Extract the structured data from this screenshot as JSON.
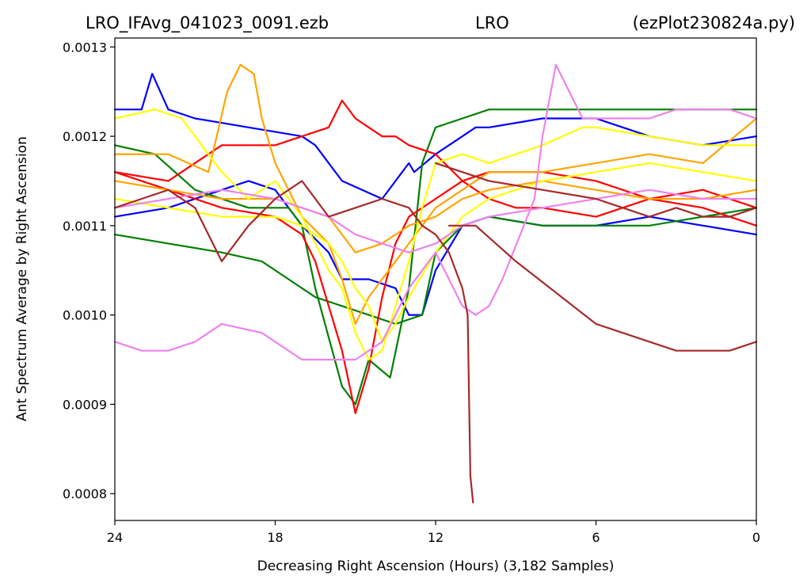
{
  "chart_data": {
    "type": "line",
    "title_left": "LRO_IFAvg_041023_0091.ezb",
    "title_center": "LRO",
    "title_right": "(ezPlot230824a.py)",
    "xlabel": "Decreasing Right Ascension (Hours) (3,182 Samples)",
    "ylabel": "Ant Spectrum Average by Right Ascension",
    "x_reversed": true,
    "xlim": [
      24,
      0
    ],
    "ylim": [
      0.00077,
      0.00131
    ],
    "x_ticks": [
      24,
      18,
      12,
      6,
      0
    ],
    "x_tick_labels": [
      "24",
      "18",
      "12",
      "6",
      "0"
    ],
    "y_ticks": [
      0.0008,
      0.0009,
      0.001,
      0.0011,
      0.0012,
      0.0013
    ],
    "y_tick_labels": [
      "0.0008",
      "0.0009",
      "0.0010",
      "0.0011",
      "0.0012",
      "0.0013"
    ],
    "grid": false,
    "series": [
      {
        "color": "#0000ff",
        "x": [
          24,
          23,
          22.6,
          22,
          21,
          19,
          17,
          16.5,
          15.5,
          14,
          13,
          12.8,
          12,
          11,
          10.5,
          10,
          8,
          6,
          4,
          2,
          0
        ],
        "y": [
          0.00123,
          0.00123,
          0.00127,
          0.00123,
          0.00122,
          0.00121,
          0.0012,
          0.00119,
          0.00115,
          0.00113,
          0.00117,
          0.00116,
          0.00118,
          0.0012,
          0.00121,
          0.00121,
          0.00122,
          0.00122,
          0.0012,
          0.00119,
          0.0012
        ]
      },
      {
        "color": "#0000ff",
        "x": [
          24,
          22,
          20,
          19,
          18,
          17,
          16,
          15.5,
          14.5,
          13.5,
          13,
          12.5,
          12,
          11,
          10,
          8,
          6,
          4,
          2,
          0
        ],
        "y": [
          0.00111,
          0.00112,
          0.00114,
          0.00115,
          0.00114,
          0.0011,
          0.00107,
          0.00104,
          0.00104,
          0.00103,
          0.001,
          0.001,
          0.00105,
          0.0011,
          0.00111,
          0.0011,
          0.0011,
          0.00111,
          0.0011,
          0.00109
        ]
      },
      {
        "color": "#008000",
        "x": [
          24,
          22.5,
          21,
          19,
          17.5,
          17,
          16.5,
          15.5,
          15,
          14.5,
          13.7,
          13,
          12.5,
          12,
          11,
          10,
          8,
          6,
          4,
          2,
          0
        ],
        "y": [
          0.00119,
          0.00118,
          0.00114,
          0.00112,
          0.00112,
          0.0011,
          0.00103,
          0.00092,
          0.0009,
          0.00095,
          0.00093,
          0.00103,
          0.00117,
          0.00121,
          0.00122,
          0.00123,
          0.00123,
          0.00123,
          0.00123,
          0.00123,
          0.00123
        ]
      },
      {
        "color": "#008000",
        "x": [
          24,
          22,
          20,
          18.5,
          17.5,
          16.5,
          15.5,
          14.5,
          13.5,
          12.5,
          12,
          11,
          10,
          8,
          6,
          4,
          2,
          0
        ],
        "y": [
          0.00109,
          0.00108,
          0.00107,
          0.00106,
          0.00104,
          0.00102,
          0.00101,
          0.001,
          0.00099,
          0.001,
          0.00107,
          0.0011,
          0.00111,
          0.0011,
          0.0011,
          0.0011,
          0.00111,
          0.00112
        ]
      },
      {
        "color": "#ff0000",
        "x": [
          24,
          22,
          20,
          18,
          17,
          16,
          15.5,
          15,
          14.5,
          14,
          13.5,
          13,
          12,
          11,
          10,
          9,
          8,
          6,
          4,
          2,
          0
        ],
        "y": [
          0.00116,
          0.00115,
          0.00119,
          0.00119,
          0.0012,
          0.00121,
          0.00124,
          0.00122,
          0.00121,
          0.0012,
          0.0012,
          0.00119,
          0.00118,
          0.00115,
          0.00113,
          0.00112,
          0.00112,
          0.00111,
          0.00113,
          0.00114,
          0.00112
        ]
      },
      {
        "color": "#ff0000",
        "x": [
          24,
          22,
          20,
          18,
          17,
          16.5,
          16,
          15.5,
          15,
          14.5,
          14,
          13.5,
          13,
          12.5,
          12,
          11,
          10,
          8,
          6,
          4,
          2,
          0
        ],
        "y": [
          0.00116,
          0.00114,
          0.00112,
          0.00111,
          0.00109,
          0.00106,
          0.00101,
          0.00096,
          0.00089,
          0.00094,
          0.00102,
          0.00108,
          0.00111,
          0.00112,
          0.00113,
          0.00115,
          0.00116,
          0.00116,
          0.00115,
          0.00113,
          0.00112,
          0.0011
        ]
      },
      {
        "color": "#ffa500",
        "x": [
          24,
          22,
          20.5,
          19.8,
          19.3,
          18.8,
          18.5,
          18,
          17,
          16,
          15.5,
          15,
          14.5,
          14,
          13,
          12,
          11,
          10,
          8,
          6,
          4,
          2,
          0
        ],
        "y": [
          0.00118,
          0.00118,
          0.00116,
          0.00125,
          0.00128,
          0.00127,
          0.00122,
          0.00117,
          0.00111,
          0.00108,
          0.00104,
          0.00099,
          0.00102,
          0.00104,
          0.00108,
          0.00112,
          0.00114,
          0.00116,
          0.00116,
          0.00117,
          0.00118,
          0.00117,
          0.00122
        ]
      },
      {
        "color": "#ffa500",
        "x": [
          24,
          22,
          20,
          18,
          17,
          16,
          15.5,
          15,
          14,
          13,
          12,
          11,
          10,
          8,
          6,
          4,
          2,
          0
        ],
        "y": [
          0.00115,
          0.00114,
          0.00113,
          0.00113,
          0.00112,
          0.00111,
          0.00109,
          0.00107,
          0.00108,
          0.0011,
          0.00111,
          0.00113,
          0.00114,
          0.00115,
          0.00114,
          0.00113,
          0.00113,
          0.00114
        ]
      },
      {
        "color": "#ffff00",
        "x": [
          24,
          22.5,
          21.5,
          21,
          20,
          19,
          18.5,
          18,
          17,
          16,
          15.5,
          15,
          14.5,
          14,
          13.5,
          13,
          12.5,
          12,
          11,
          10,
          8,
          6.5,
          6,
          4,
          2,
          0
        ],
        "y": [
          0.00122,
          0.00123,
          0.00122,
          0.0012,
          0.00116,
          0.00113,
          0.00114,
          0.00115,
          0.00111,
          0.00105,
          0.00103,
          0.00098,
          0.00095,
          0.00096,
          0.00101,
          0.00106,
          0.00112,
          0.00117,
          0.00118,
          0.00117,
          0.00119,
          0.00121,
          0.00121,
          0.0012,
          0.00119,
          0.00119
        ]
      },
      {
        "color": "#ffff00",
        "x": [
          24,
          22,
          20,
          18,
          17,
          16,
          15.5,
          15,
          14.5,
          14,
          13.5,
          13,
          12,
          11,
          10,
          8,
          6,
          4,
          2,
          0
        ],
        "y": [
          0.00113,
          0.00112,
          0.00111,
          0.00111,
          0.0011,
          0.00108,
          0.00106,
          0.00103,
          0.00101,
          0.00097,
          0.00099,
          0.00102,
          0.00107,
          0.00111,
          0.00113,
          0.00115,
          0.00116,
          0.00117,
          0.00116,
          0.00115
        ]
      },
      {
        "color": "#ee82ee",
        "x": [
          24,
          23,
          22,
          21,
          20,
          18.5,
          17,
          16,
          15,
          14,
          13,
          12,
          11,
          10.5,
          10,
          9.5,
          8.3,
          8,
          7.5,
          6.5,
          6,
          5,
          4,
          3,
          2,
          1,
          0
        ],
        "y": [
          0.00097,
          0.00096,
          0.00096,
          0.00097,
          0.00099,
          0.00098,
          0.00095,
          0.00095,
          0.00095,
          0.00097,
          0.00103,
          0.00107,
          0.00101,
          0.001,
          0.00101,
          0.00104,
          0.00113,
          0.0012,
          0.00128,
          0.00122,
          0.00122,
          0.00122,
          0.00122,
          0.00123,
          0.00123,
          0.00123,
          0.00122
        ]
      },
      {
        "color": "#ee82ee",
        "x": [
          24,
          22,
          20,
          18,
          17,
          16,
          15,
          14,
          13,
          12,
          11,
          10,
          8,
          6,
          4,
          2,
          0
        ],
        "y": [
          0.00112,
          0.00113,
          0.00114,
          0.00113,
          0.00112,
          0.00111,
          0.00109,
          0.00108,
          0.00107,
          0.00108,
          0.0011,
          0.00111,
          0.00112,
          0.00113,
          0.00114,
          0.00113,
          0.00113
        ]
      },
      {
        "color": "#a52a2a",
        "x": [
          24,
          23,
          22,
          21,
          20,
          19,
          18,
          17,
          16,
          15,
          14,
          13,
          12.5,
          12,
          11.5,
          11,
          10.8,
          10.7,
          10.6
        ],
        "y": [
          0.00112,
          0.00113,
          0.00114,
          0.00112,
          0.00106,
          0.0011,
          0.00113,
          0.00115,
          0.00111,
          0.00112,
          0.00113,
          0.00112,
          0.0011,
          0.00109,
          0.00107,
          0.00103,
          0.001,
          0.00082,
          0.00079
        ]
      },
      {
        "color": "#a52a2a",
        "x": [
          11.5,
          10.5,
          9,
          6,
          4,
          3,
          2,
          1,
          0
        ],
        "y": [
          0.0011,
          0.0011,
          0.00106,
          0.00099,
          0.00097,
          0.00096,
          0.00096,
          0.00096,
          0.00097
        ]
      },
      {
        "color": "#a52a2a",
        "x": [
          12,
          11,
          10,
          8,
          6,
          5,
          4,
          3,
          2,
          1,
          0
        ],
        "y": [
          0.00117,
          0.00116,
          0.00115,
          0.00114,
          0.00113,
          0.00112,
          0.00111,
          0.00112,
          0.00111,
          0.00111,
          0.00112
        ]
      }
    ]
  }
}
